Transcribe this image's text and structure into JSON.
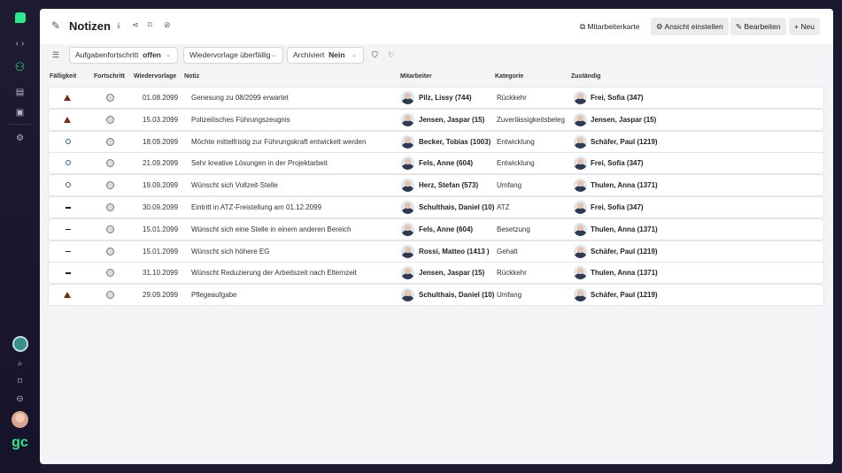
{
  "sidebar": {
    "items": [
      "logo",
      "nav-arrows",
      "org-chart",
      "document",
      "contact-card",
      "settings"
    ],
    "bottom": [
      "bot-avatar",
      "search",
      "bookmark",
      "inbox",
      "user-avatar"
    ],
    "brand": "gc"
  },
  "header": {
    "title": "Notizen",
    "actions": {
      "employee_map": "Mitarbeiterkarte",
      "view_settings": "Ansicht einstellen",
      "edit": "Bearbeiten",
      "new": "Neu"
    }
  },
  "filters": [
    {
      "label": "Aufgabenfortschritt",
      "value": "offen"
    },
    {
      "label": "Wiedervorlage überfällig",
      "value": ""
    },
    {
      "label": "Archiviert",
      "value": "Nein"
    }
  ],
  "columns": [
    "Fälligkeit",
    "Fortschritt",
    "Wiedervorlage",
    "Notiz",
    "Mitarbeiter",
    "Kategorie",
    "Zuständig"
  ],
  "rows": [
    {
      "due": "warning",
      "date": "01.08.2099",
      "note": "Genesung zu 08/2099 erwartet",
      "employee": "Pilz, Lissy (744)",
      "category": "Rückkehr",
      "owner": "Frei, Sofia (347)"
    },
    {
      "due": "warning",
      "date": "15.03.2099",
      "note": "Polizeilisches Führungszeugnis",
      "employee": "Jensen, Jaspar (15)",
      "category": "Zuverlässigkeitsbeleg",
      "owner": "Jensen, Jaspar (15)"
    },
    {
      "due": "circle",
      "date": "18.09.2099",
      "note": "Möchte mittelfristig zur Führungskraft entwickelt werden",
      "employee": "Becker, Tobias (1003)",
      "category": "Entwicklung",
      "owner": "Schäfer, Paul (1219)"
    },
    {
      "due": "circle",
      "date": "21.09.2099",
      "note": "Sehr kreative Lösungen in der Projektarbeit",
      "employee": "Fels, Anne (604)",
      "category": "Entwicklung",
      "owner": "Frei, Sofia (347)"
    },
    {
      "due": "circle",
      "date": "19.09.2099",
      "note": "Wünscht sich Vollzeit-Stelle",
      "employee": "Herz, Stefan (573)",
      "category": "Umfang",
      "owner": "Thulen, Anna (1371)"
    },
    {
      "due": "dash",
      "date": "30.09.2099",
      "note": "Eintritt in ATZ-Freistellung am 01.12.2099",
      "employee": "Schulthais, Daniel (10)",
      "category": "ATZ",
      "owner": "Frei, Sofia (347)"
    },
    {
      "due": "dash",
      "date": "15.01.2099",
      "note": "Wünscht sich eine Stelle in einem anderen Bereich",
      "employee": "Fels, Anne (604)",
      "category": "Besetzung",
      "owner": "Thulen, Anna (1371)"
    },
    {
      "due": "dash",
      "date": "15.01.2099",
      "note": "Wünscht sich höhere EG",
      "employee": "Rossi, Matteo (1413 )",
      "category": "Gehalt",
      "owner": "Schäfer, Paul (1219)"
    },
    {
      "due": "dash",
      "date": "31.10.2099",
      "note": "Wünscht Reduzierung der Arbeitszeit nach Elternzeit",
      "employee": "Jensen, Jaspar (15)",
      "category": "Rückkehr",
      "owner": "Thulen, Anna (1371)"
    },
    {
      "due": "warning",
      "date": "29.09.2099",
      "note": "Pflegeaufgabe",
      "employee": "Schulthais, Daniel (10)",
      "category": "Umfang",
      "owner": "Schäfer, Paul (1219)"
    }
  ],
  "colors": {
    "brand": "#2ee88a",
    "warning": "#7b2a12",
    "open": "#2f5da6",
    "sidebar": "#1d1930"
  }
}
